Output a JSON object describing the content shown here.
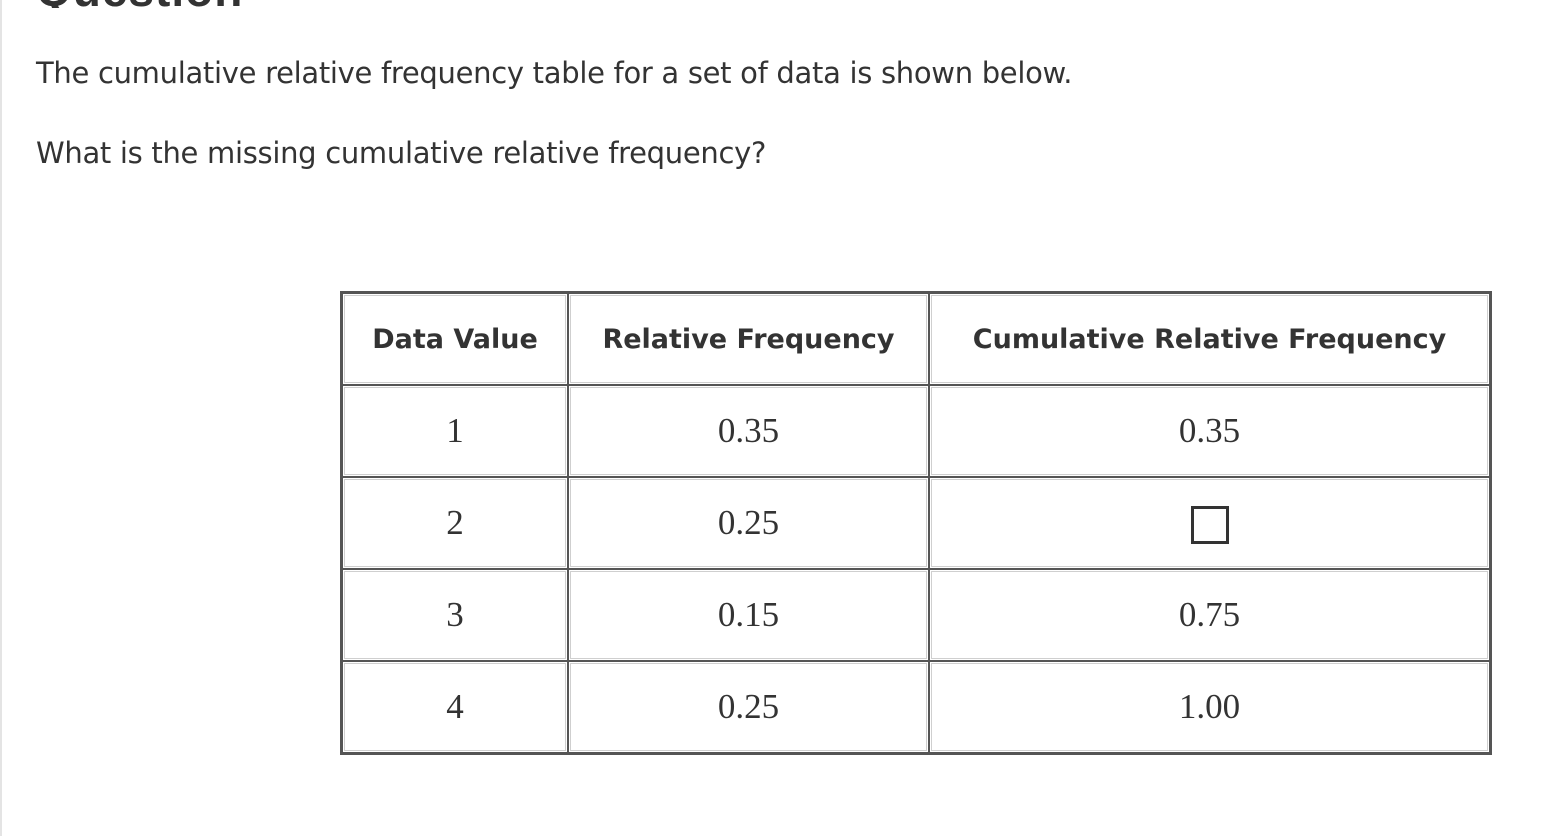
{
  "heading": "Question",
  "prompt": {
    "line1": "The cumulative relative frequency table for a set of data is shown below.",
    "line2": "What is the missing cumulative relative frequency?"
  },
  "table": {
    "headers": [
      "Data Value",
      "Relative Frequency",
      "Cumulative Relative Frequency"
    ],
    "rows": [
      {
        "data_value": "1",
        "relative_frequency": "0.35",
        "cumulative_relative_frequency": "0.35"
      },
      {
        "data_value": "2",
        "relative_frequency": "0.25",
        "cumulative_relative_frequency": "",
        "missing": true
      },
      {
        "data_value": "3",
        "relative_frequency": "0.15",
        "cumulative_relative_frequency": "0.75"
      },
      {
        "data_value": "4",
        "relative_frequency": "0.25",
        "cumulative_relative_frequency": "1.00"
      }
    ]
  }
}
